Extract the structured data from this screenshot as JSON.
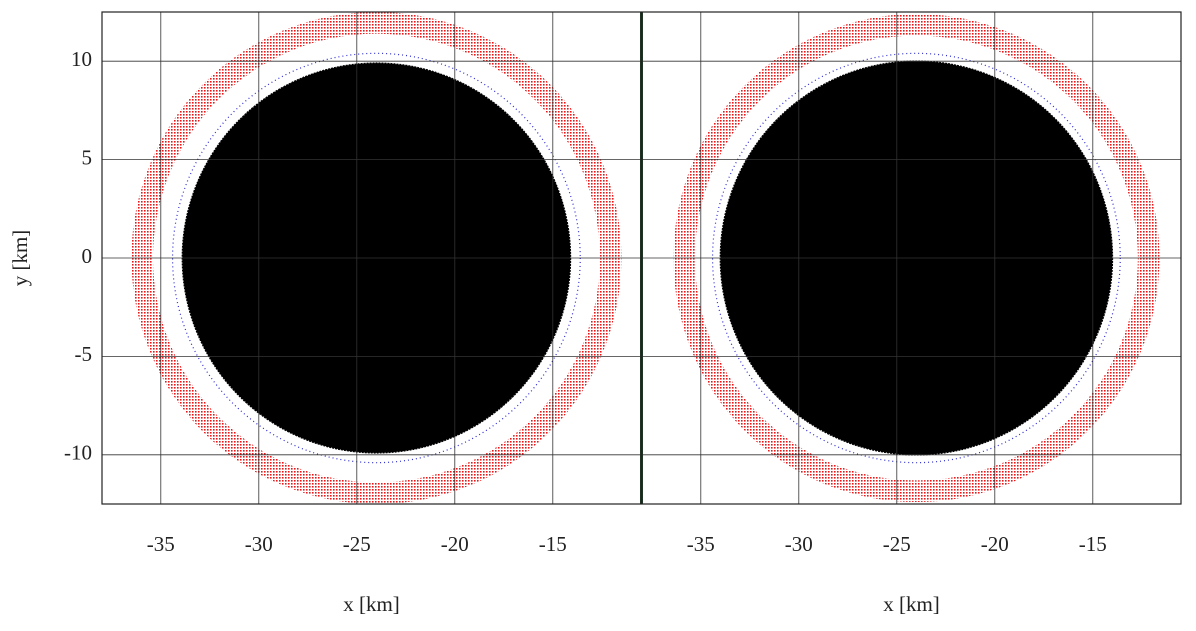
{
  "chart_data": [
    {
      "type": "scatter",
      "xlabel": "x [km]",
      "ylabel": "y [km]",
      "xlim": [
        -38,
        -10.5
      ],
      "ylim": [
        -12.5,
        12.5
      ],
      "xticks": [
        -35,
        -30,
        -25,
        -20,
        -15
      ],
      "yticks": [
        -10,
        -5,
        0,
        5,
        10
      ],
      "ytick_labels": true,
      "grid": true,
      "series": [
        {
          "shape": "ring",
          "color": "#e8191a",
          "cx": -24,
          "cy": 0,
          "r": [
            11.4,
            12.5
          ]
        },
        {
          "shape": "circle",
          "color": "#2a2ad0",
          "cx": -24,
          "cy": 0,
          "r": 10.4
        },
        {
          "shape": "disk",
          "color": "#000000",
          "cx": -24,
          "cy": 0,
          "r": 9.9
        }
      ]
    },
    {
      "type": "scatter",
      "xlabel": "x [km]",
      "xlim": [
        -38,
        -10.5
      ],
      "ylim": [
        -12.5,
        12.5
      ],
      "xticks": [
        -35,
        -30,
        -25,
        -20,
        -15
      ],
      "yticks": [
        -10,
        -5,
        0,
        5,
        10
      ],
      "ytick_labels": false,
      "grid": true,
      "series": [
        {
          "shape": "ring",
          "color": "#e8191a",
          "cx": -24,
          "cy": 0,
          "r": [
            11.3,
            12.4
          ]
        },
        {
          "shape": "circle",
          "color": "#2a2ad0",
          "cx": -24,
          "cy": 0,
          "r": 10.4
        },
        {
          "shape": "disk",
          "color": "#000000",
          "cx": -24,
          "cy": 0,
          "r": 10.0
        }
      ]
    }
  ]
}
